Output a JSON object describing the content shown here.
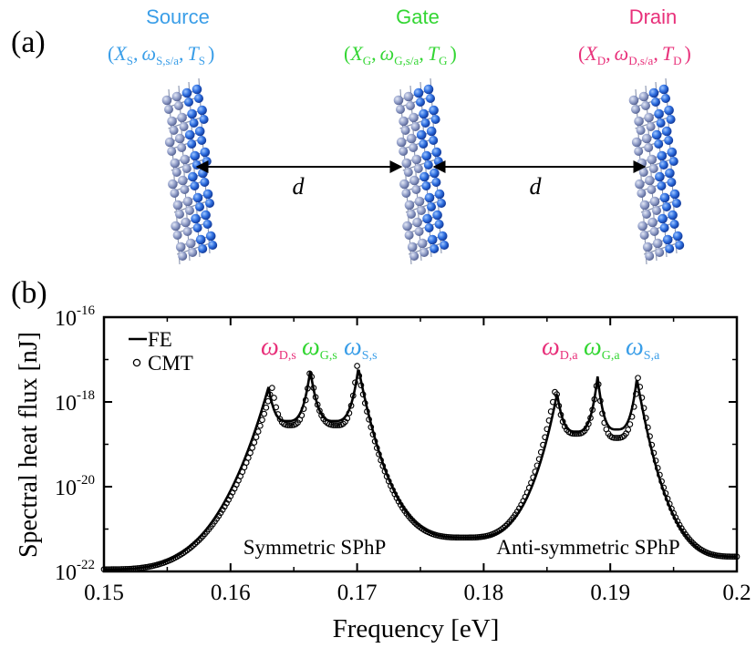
{
  "panel_a": {
    "label": "(a)",
    "distance_label": "d",
    "terminals": [
      {
        "name": "Source",
        "sym": "X",
        "sub": "S",
        "omega_sub": "S,s/a",
        "t_sub": "S",
        "color": "#3a9ee8"
      },
      {
        "name": "Gate",
        "sym": "X",
        "sub": "G",
        "omega_sub": "G,s/a",
        "t_sub": "G",
        "color": "#33d633"
      },
      {
        "name": "Drain",
        "sym": "X",
        "sub": "D",
        "omega_sub": "D,s/a",
        "t_sub": "D",
        "color": "#e8307a"
      }
    ],
    "comma": ",",
    "open_paren": "(",
    "close_paren": ")"
  },
  "panel_b": {
    "label": "(b)",
    "legend": [
      {
        "label": "FE",
        "style": "line"
      },
      {
        "label": "CMT",
        "style": "circle"
      }
    ],
    "peak_labels": [
      {
        "text": "ω",
        "sub": "D,s",
        "color": "#e8307a"
      },
      {
        "text": "ω",
        "sub": "G,s",
        "color": "#33d633"
      },
      {
        "text": "ω",
        "sub": "S,s",
        "color": "#3a9ee8"
      },
      {
        "text": "ω",
        "sub": "D,a",
        "color": "#e8307a"
      },
      {
        "text": "ω",
        "sub": "G,a",
        "color": "#33d633"
      },
      {
        "text": "ω",
        "sub": "S,a",
        "color": "#3a9ee8"
      }
    ],
    "region_labels": [
      "Symmetric SPhP",
      "Anti-symmetric SPhP"
    ]
  },
  "chart_data": {
    "type": "line",
    "title": "",
    "xlabel": "Frequency [eV]",
    "ylabel": "Spectral heat flux [nJ]",
    "xlim": [
      0.15,
      0.2
    ],
    "ylim_log10": [
      -22,
      -16
    ],
    "yscale": "log",
    "x_ticks": [
      0.15,
      0.16,
      0.17,
      0.18,
      0.19,
      0.2
    ],
    "x_tick_labels": [
      "0.15",
      "0.16",
      "0.17",
      "0.18",
      "0.19",
      "0.2"
    ],
    "y_ticks_log10": [
      -22,
      -20,
      -18,
      -16
    ],
    "y_tick_base": "10",
    "y_tick_exponents": [
      "-22",
      "-20",
      "-18",
      "-16"
    ],
    "series": [
      {
        "name": "FE",
        "style": "line",
        "peaks": [
          {
            "x": 0.163,
            "log10_y": -17.65
          },
          {
            "x": 0.1663,
            "log10_y": -17.25
          },
          {
            "x": 0.1701,
            "log10_y": -17.2
          },
          {
            "x": 0.1858,
            "log10_y": -17.8
          },
          {
            "x": 0.189,
            "log10_y": -17.4
          },
          {
            "x": 0.1921,
            "log10_y": -17.45
          }
        ],
        "valleys": [
          {
            "x": 0.1645,
            "log10_y": -18.45
          },
          {
            "x": 0.1682,
            "log10_y": -18.45
          },
          {
            "x": 0.1786,
            "log10_y": -21.2
          },
          {
            "x": 0.1873,
            "log10_y": -18.7
          },
          {
            "x": 0.1905,
            "log10_y": -18.65
          }
        ],
        "edges": [
          {
            "x": 0.15,
            "log10_y": -21.95
          },
          {
            "x": 0.2,
            "log10_y": -21.65
          }
        ]
      },
      {
        "name": "CMT",
        "style": "circle",
        "peaks": [
          {
            "x": 0.1633,
            "log10_y": -17.65
          },
          {
            "x": 0.1663,
            "log10_y": -17.2
          },
          {
            "x": 0.17,
            "log10_y": -17.15
          },
          {
            "x": 0.1857,
            "log10_y": -17.65
          },
          {
            "x": 0.189,
            "log10_y": -17.4
          },
          {
            "x": 0.1922,
            "log10_y": -17.4
          }
        ],
        "valleys": [
          {
            "x": 0.1647,
            "log10_y": -18.55
          },
          {
            "x": 0.1684,
            "log10_y": -18.55
          },
          {
            "x": 0.1785,
            "log10_y": -21.2
          },
          {
            "x": 0.1873,
            "log10_y": -18.75
          },
          {
            "x": 0.1905,
            "log10_y": -18.85
          }
        ],
        "edges": [
          {
            "x": 0.15,
            "log10_y": -21.95
          },
          {
            "x": 0.2,
            "log10_y": -21.65
          }
        ]
      }
    ]
  }
}
